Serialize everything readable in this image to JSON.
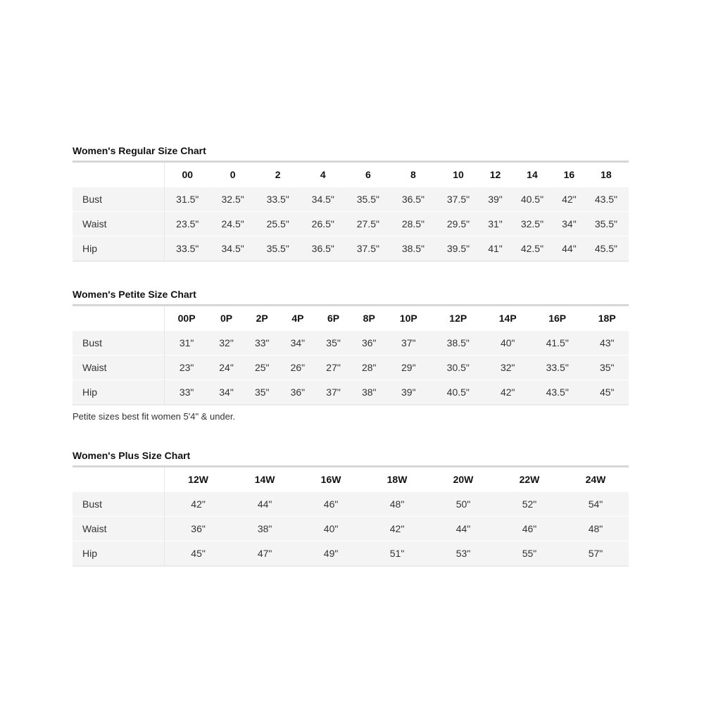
{
  "regular": {
    "title": "Women's Regular Size Chart",
    "sizes": [
      "00",
      "0",
      "2",
      "4",
      "6",
      "8",
      "10",
      "12",
      "14",
      "16",
      "18"
    ],
    "rows": [
      {
        "label": "Bust",
        "values": [
          "31.5\"",
          "32.5\"",
          "33.5\"",
          "34.5\"",
          "35.5\"",
          "36.5\"",
          "37.5\"",
          "39\"",
          "40.5\"",
          "42\"",
          "43.5\""
        ]
      },
      {
        "label": "Waist",
        "values": [
          "23.5\"",
          "24.5\"",
          "25.5\"",
          "26.5\"",
          "27.5\"",
          "28.5\"",
          "29.5\"",
          "31\"",
          "32.5\"",
          "34\"",
          "35.5\""
        ]
      },
      {
        "label": "Hip",
        "values": [
          "33.5\"",
          "34.5\"",
          "35.5\"",
          "36.5\"",
          "37.5\"",
          "38.5\"",
          "39.5\"",
          "41\"",
          "42.5\"",
          "44\"",
          "45.5\""
        ]
      }
    ]
  },
  "petite": {
    "title": "Women's Petite Size Chart",
    "sizes": [
      "00P",
      "0P",
      "2P",
      "4P",
      "6P",
      "8P",
      "10P",
      "12P",
      "14P",
      "16P",
      "18P"
    ],
    "rows": [
      {
        "label": "Bust",
        "values": [
          "31\"",
          "32\"",
          "33\"",
          "34\"",
          "35\"",
          "36\"",
          "37\"",
          "38.5\"",
          "40\"",
          "41.5\"",
          "43\""
        ]
      },
      {
        "label": "Waist",
        "values": [
          "23\"",
          "24\"",
          "25\"",
          "26\"",
          "27\"",
          "28\"",
          "29\"",
          "30.5\"",
          "32\"",
          "33.5\"",
          "35\""
        ]
      },
      {
        "label": "Hip",
        "values": [
          "33\"",
          "34\"",
          "35\"",
          "36\"",
          "37\"",
          "38\"",
          "39\"",
          "40.5\"",
          "42\"",
          "43.5\"",
          "45\""
        ]
      }
    ],
    "note": "Petite sizes best fit women 5'4\" & under."
  },
  "plus": {
    "title": "Women's Plus Size Chart",
    "sizes": [
      "12W",
      "14W",
      "16W",
      "18W",
      "20W",
      "22W",
      "24W"
    ],
    "rows": [
      {
        "label": "Bust",
        "values": [
          "42\"",
          "44\"",
          "46\"",
          "48\"",
          "50\"",
          "52\"",
          "54\""
        ]
      },
      {
        "label": "Waist",
        "values": [
          "36\"",
          "38\"",
          "40\"",
          "42\"",
          "44\"",
          "46\"",
          "48\""
        ]
      },
      {
        "label": "Hip",
        "values": [
          "45\"",
          "47\"",
          "49\"",
          "51\"",
          "53\"",
          "55\"",
          "57\""
        ]
      }
    ]
  }
}
